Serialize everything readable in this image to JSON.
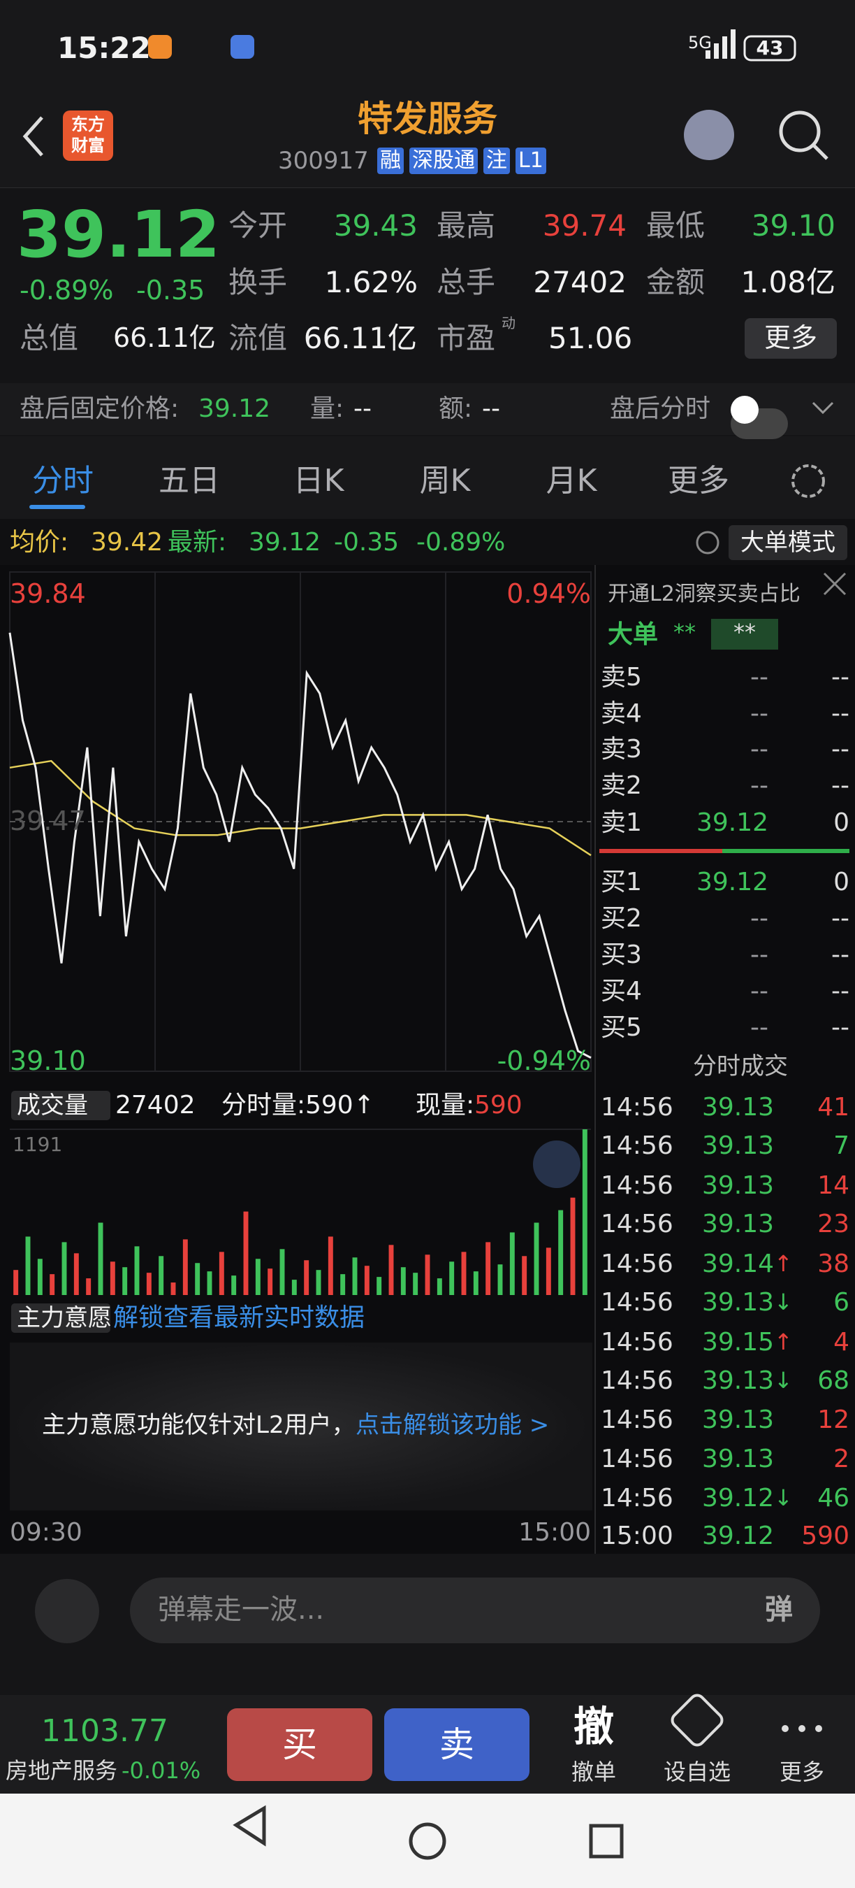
{
  "status_bar": {
    "time": "15:22",
    "network": "5G",
    "battery": "43"
  },
  "header": {
    "logo": [
      "东方",
      "财富"
    ],
    "title": "特发服务",
    "code": "300917",
    "tags": [
      "融",
      "深股通",
      "注",
      "L1"
    ]
  },
  "quote": {
    "price": "39.12",
    "change_pct": "-0.89%",
    "change": "-0.35",
    "stats": [
      {
        "label": "今开",
        "value": "39.43",
        "color": "#3fc35b"
      },
      {
        "label": "最高",
        "value": "39.74",
        "color": "#e8413c"
      },
      {
        "label": "最低",
        "value": "39.10",
        "color": "#3fc35b"
      },
      {
        "label": "换手",
        "value": "1.62%",
        "color": "#f2f2f2"
      },
      {
        "label": "总手",
        "value": "27402",
        "color": "#f2f2f2"
      },
      {
        "label": "金额",
        "value": "1.08亿",
        "color": "#f2f2f2"
      },
      {
        "label": "总值",
        "value": "66.11亿",
        "color": "#f2f2f2"
      },
      {
        "label": "流值",
        "value": "66.11亿",
        "color": "#f2f2f2"
      },
      {
        "label": "市盈",
        "value": "51.06",
        "color": "#f2f2f2"
      }
    ],
    "pe_tag": "动",
    "more": "更多"
  },
  "after_hours": {
    "label": "盘后固定价格:",
    "price": "39.12",
    "volume_label": "量:",
    "volume": "--",
    "amount_label": "额:",
    "amount": "--",
    "toggle": "盘后分时"
  },
  "tabs": [
    "分时",
    "五日",
    "日K",
    "周K",
    "月K",
    "更多"
  ],
  "active_tab": 0,
  "info_bar": {
    "avg_label": "均价:",
    "avg": "39.42",
    "latest_label": "最新:",
    "latest": "39.12",
    "change": "-0.35",
    "change_pct": "-0.89%",
    "mode": "大单模式"
  },
  "intraday": {
    "ylim": [
      39.1,
      39.84
    ],
    "yticks": [
      39.84,
      39.47,
      {
        "value": 39.1,
        "label": "39.10"
      }
    ],
    "y2lim": [
      -0.94,
      0.94
    ],
    "y2ticks": [
      {
        "value": 0.94,
        "label": "0.94%"
      },
      {
        "value": -0.94,
        "label": "-0.94%"
      }
    ],
    "xticks": [
      "09:30",
      "15:00"
    ],
    "price": {
      "color": "#f0f0f0",
      "values": [
        39.75,
        39.62,
        39.55,
        39.4,
        39.26,
        39.44,
        39.58,
        39.33,
        39.55,
        39.3,
        39.44,
        39.4,
        39.37,
        39.46,
        39.66,
        39.55,
        39.51,
        39.44,
        39.55,
        39.51,
        39.49,
        39.46,
        39.4,
        39.69,
        39.66,
        39.58,
        39.62,
        39.53,
        39.58,
        39.55,
        39.51,
        39.44,
        39.48,
        39.4,
        39.44,
        39.37,
        39.4,
        39.48,
        39.4,
        39.37,
        39.3,
        39.33,
        39.26,
        39.19,
        39.13,
        39.12
      ]
    },
    "avg_price": {
      "color": "#e6d15a",
      "values": [
        39.55,
        39.56,
        39.5,
        39.46,
        39.45,
        39.45,
        39.46,
        39.46,
        39.47,
        39.48,
        39.48,
        39.48,
        39.47,
        39.46,
        39.42
      ]
    }
  },
  "volume": {
    "label": "成交量",
    "total": "27402",
    "minute_label": "分时量:",
    "minute": "590",
    "minute_arrow": "↑",
    "current_label": "现量:",
    "current": "590",
    "ylim": [
      0,
      1191
    ],
    "yticks": [
      1191
    ],
    "values": [
      180,
      420,
      260,
      150,
      380,
      300,
      120,
      520,
      240,
      200,
      350,
      160,
      280,
      90,
      400,
      230,
      170,
      310,
      140,
      600,
      260,
      190,
      330,
      110,
      250,
      180,
      420,
      150,
      270,
      210,
      130,
      360,
      200,
      160,
      290,
      120,
      240,
      310,
      170,
      380,
      220,
      450,
      280,
      520,
      340,
      610,
      700,
      1191
    ],
    "colors": [
      "#e8413c",
      "#3fc35b",
      "#3fc35b",
      "#e8413c",
      "#3fc35b",
      "#e8413c",
      "#e8413c",
      "#3fc35b",
      "#e8413c",
      "#3fc35b",
      "#3fc35b",
      "#e8413c",
      "#3fc35b",
      "#e8413c",
      "#e8413c",
      "#3fc35b",
      "#3fc35b",
      "#e8413c",
      "#3fc35b",
      "#e8413c",
      "#3fc35b",
      "#e8413c",
      "#3fc35b",
      "#3fc35b",
      "#e8413c",
      "#3fc35b",
      "#e8413c",
      "#3fc35b",
      "#3fc35b",
      "#e8413c",
      "#3fc35b",
      "#e8413c",
      "#3fc35b",
      "#3fc35b",
      "#e8413c",
      "#3fc35b",
      "#3fc35b",
      "#e8413c",
      "#3fc35b",
      "#e8413c",
      "#3fc35b",
      "#3fc35b",
      "#e8413c",
      "#3fc35b",
      "#e8413c",
      "#3fc35b",
      "#e8413c",
      "#3fc35b"
    ]
  },
  "main_force": {
    "label": "主力意愿",
    "link": "解锁查看最新实时数据",
    "notice": "主力意愿功能仅针对L2用户，",
    "notice_link": "点击解锁该功能 >"
  },
  "order_book": {
    "promo": "开通L2洞察买卖占比",
    "big_order_label": "大单",
    "big_order_values": [
      "**",
      "**"
    ],
    "asks": [
      [
        "卖5",
        "--",
        "--"
      ],
      [
        "卖4",
        "--",
        "--"
      ],
      [
        "卖3",
        "--",
        "--"
      ],
      [
        "卖2",
        "--",
        "--"
      ],
      [
        "卖1",
        "39.12",
        "0"
      ]
    ],
    "bids": [
      [
        "买1",
        "39.12",
        "0"
      ],
      [
        "买2",
        "--",
        "--"
      ],
      [
        "买3",
        "--",
        "--"
      ],
      [
        "买4",
        "--",
        "--"
      ],
      [
        "买5",
        "--",
        "--"
      ]
    ]
  },
  "trades": {
    "title": "分时成交",
    "rows": [
      {
        "time": "14:56",
        "price": "39.13",
        "volume": "41",
        "color": "#e8413c"
      },
      {
        "time": "14:56",
        "price": "39.13",
        "volume": "7",
        "color": "#3fc35b"
      },
      {
        "time": "14:56",
        "price": "39.13",
        "volume": "14",
        "color": "#e8413c"
      },
      {
        "time": "14:56",
        "price": "39.13",
        "volume": "23",
        "color": "#e8413c"
      },
      {
        "time": "14:56",
        "price": "39.14",
        "arrow": "↑",
        "volume": "38",
        "color": "#e8413c"
      },
      {
        "time": "14:56",
        "price": "39.13",
        "arrow": "↓",
        "volume": "6",
        "color": "#3fc35b"
      },
      {
        "time": "14:56",
        "price": "39.15",
        "arrow": "↑",
        "volume": "4",
        "color": "#e8413c"
      },
      {
        "time": "14:56",
        "price": "39.13",
        "arrow": "↓",
        "volume": "68",
        "color": "#3fc35b"
      },
      {
        "time": "14:56",
        "price": "39.13",
        "volume": "12",
        "color": "#e8413c"
      },
      {
        "time": "14:56",
        "price": "39.13",
        "volume": "2",
        "color": "#e8413c"
      },
      {
        "time": "14:56",
        "price": "39.12",
        "arrow": "↓",
        "volume": "46",
        "color": "#3fc35b"
      },
      {
        "time": "15:00",
        "price": "39.12",
        "volume": "590",
        "color": "#e8413c"
      }
    ]
  },
  "comment_bar": {
    "placeholder": "弹幕走一波...",
    "danmaku": "弹"
  },
  "bottom_bar": {
    "index_value": "1103.77",
    "index_name": "房地产服务",
    "index_change": "-0.01%",
    "buy": "买",
    "sell": "卖",
    "cancel_icon": "撤",
    "cancel": "撤单",
    "watchlist": "设自选",
    "more": "更多"
  }
}
